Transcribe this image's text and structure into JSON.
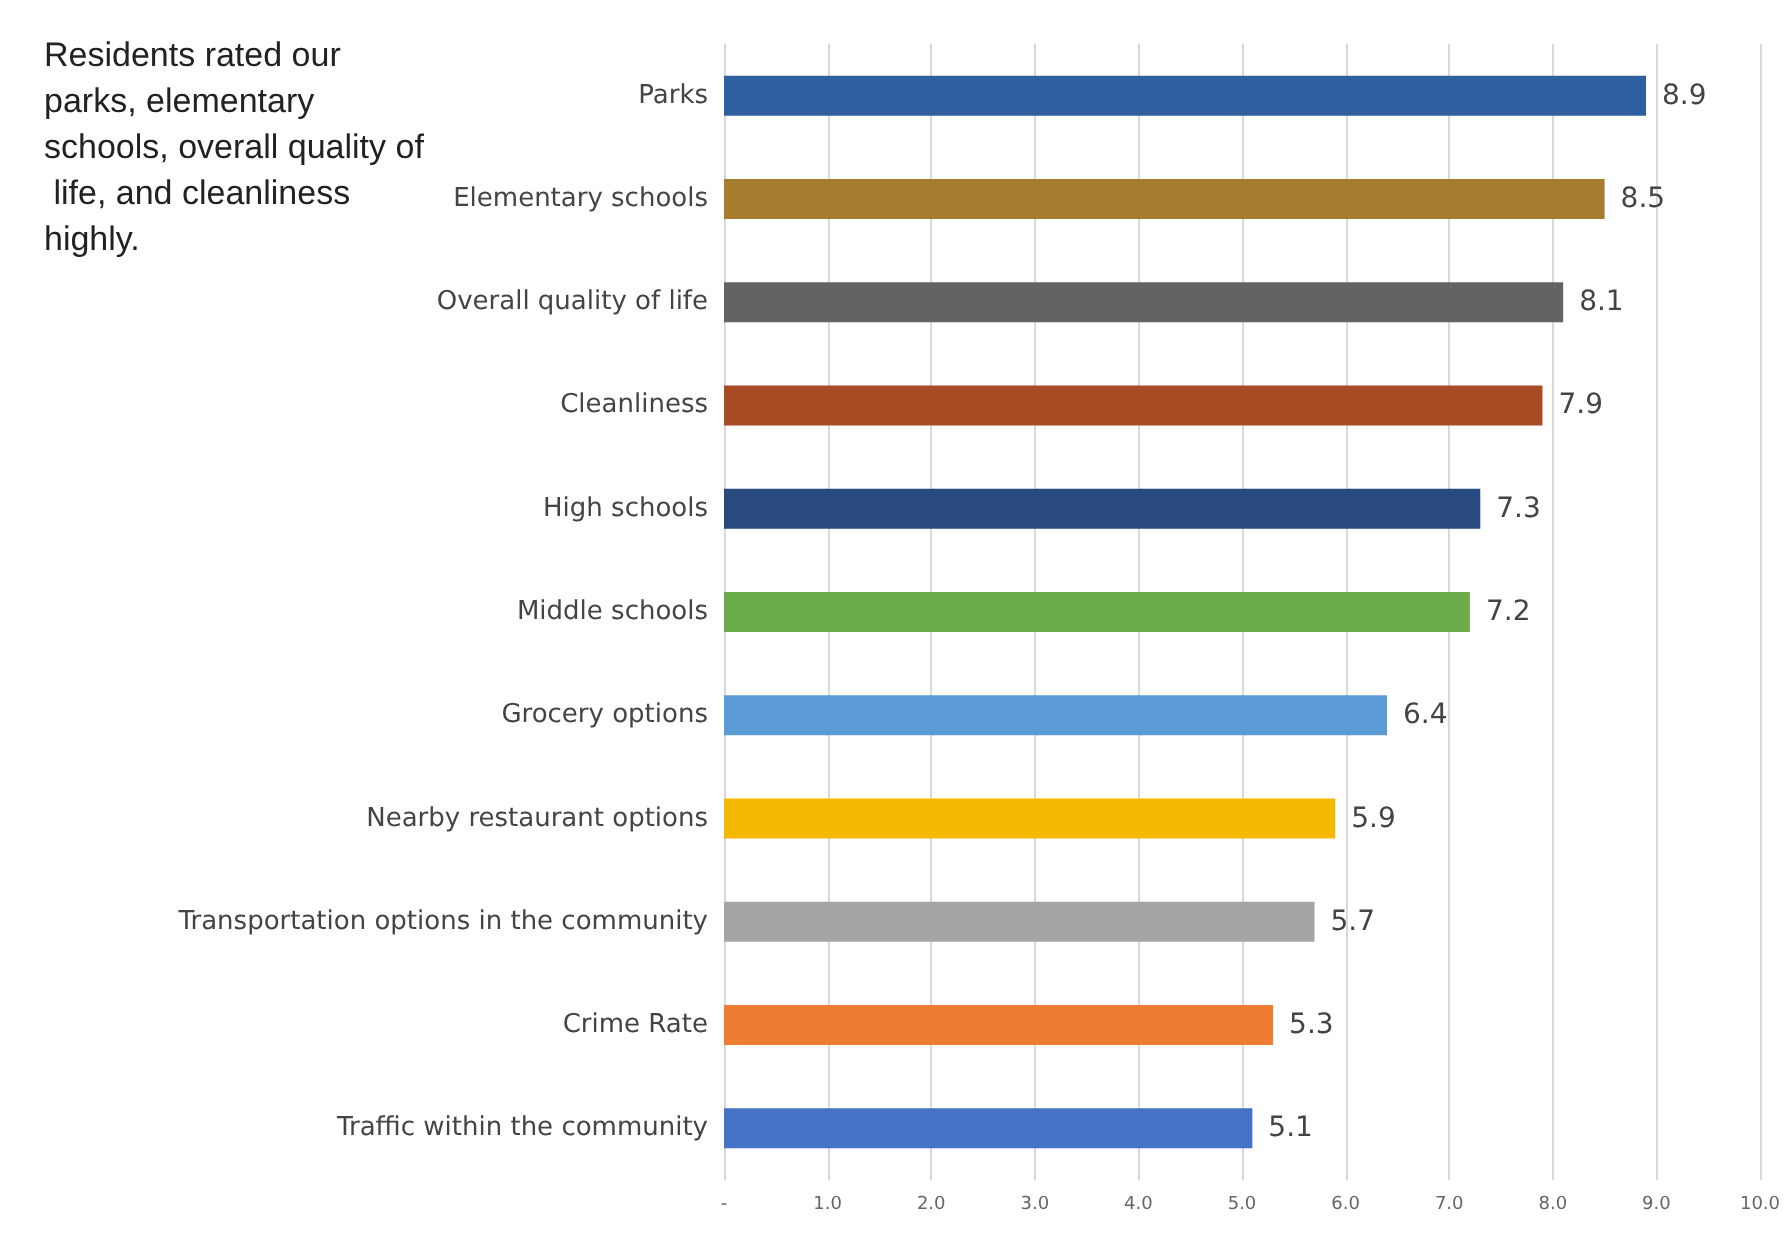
{
  "chart_data": {
    "type": "bar",
    "orientation": "horizontal",
    "categories": [
      "Parks",
      "Elementary schools",
      "Overall quality of life",
      "Cleanliness",
      "High schools",
      "Middle schools",
      "Grocery options",
      "Nearby restaurant options",
      "Transportation options in the community",
      "Crime Rate",
      "Traffic within the community"
    ],
    "values": [
      8.9,
      8.5,
      8.1,
      7.9,
      7.3,
      7.2,
      6.4,
      5.9,
      5.7,
      5.3,
      5.1
    ],
    "colors": [
      "#2e5f9e",
      "#a67c2e",
      "#636363",
      "#a84a24",
      "#284a7e",
      "#6bab4a",
      "#5b9bd5",
      "#f5b800",
      "#a5a5a5",
      "#ed7d31",
      "#4472c4"
    ],
    "xlim": [
      0,
      10
    ],
    "xticks": [
      {
        "value": 0,
        "label": "-"
      },
      {
        "value": 1,
        "label": "1.0"
      },
      {
        "value": 2,
        "label": "2.0"
      },
      {
        "value": 3,
        "label": "3.0"
      },
      {
        "value": 4,
        "label": "4.0"
      },
      {
        "value": 5,
        "label": "5.0"
      },
      {
        "value": 6,
        "label": "6.0"
      },
      {
        "value": 7,
        "label": "7.0"
      },
      {
        "value": 8,
        "label": "8.0"
      },
      {
        "value": 9,
        "label": "9.0"
      },
      {
        "value": 10,
        "label": "10.0"
      }
    ],
    "grid": "x",
    "data_labels": true,
    "annotations": [
      "Residents rated our parks, elementary schools, overall quality of life, and cleanliness highly."
    ]
  }
}
